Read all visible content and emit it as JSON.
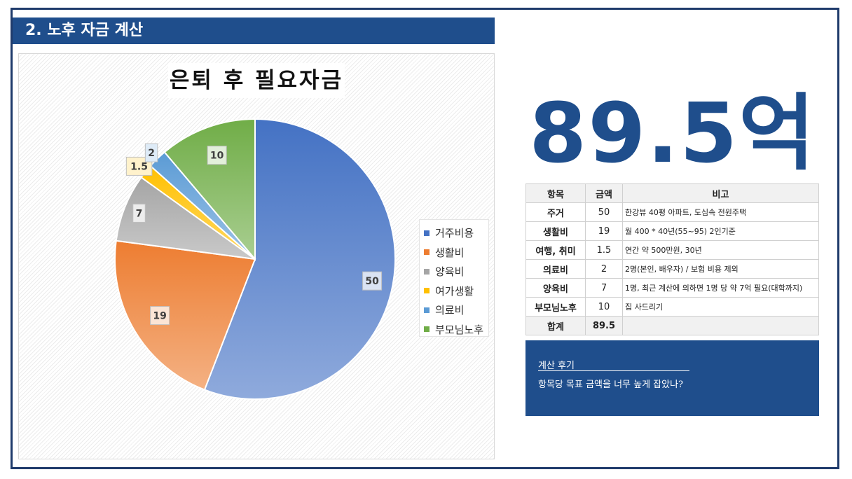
{
  "section": {
    "title": "2. 노후 자금 계산"
  },
  "chart_data": {
    "type": "pie",
    "title": "은퇴 후 필요자금",
    "categories": [
      "거주비용",
      "생활비",
      "양육비",
      "여가생활",
      "의료비",
      "부모님노후"
    ],
    "values": [
      50,
      19,
      7,
      1.5,
      2,
      10
    ],
    "data_labels": [
      "50",
      "19",
      "7",
      "1.5",
      "2",
      "10"
    ],
    "colors": [
      "#4472c4",
      "#ed7d31",
      "#a5a5a5",
      "#ffc000",
      "#5b9bd5",
      "#70ad47"
    ],
    "legend_position": "right"
  },
  "summary": {
    "total_display": "89.5억"
  },
  "table": {
    "headers": [
      "항목",
      "금액",
      "비고"
    ],
    "rows": [
      {
        "item": "주거",
        "amount": "50",
        "note": "한강뷰 40평 아파트, 도심속 전원주택"
      },
      {
        "item": "생활비",
        "amount": "19",
        "note": "월 400 * 40년(55~95) 2인기준"
      },
      {
        "item": "여행, 취미",
        "amount": "1.5",
        "note": "연간 약 500만원, 30년"
      },
      {
        "item": "의료비",
        "amount": "2",
        "note": "2명(본인, 배우자) / 보험 비용 제외"
      },
      {
        "item": "양육비",
        "amount": "7",
        "note": "1명, 최근 계산에 의하면 1명 당 약 7억 필요(대학까지)"
      },
      {
        "item": "부모님노후",
        "amount": "10",
        "note": "집 사드리기"
      }
    ],
    "total": {
      "item": "합계",
      "amount": "89.5",
      "note": ""
    }
  },
  "review": {
    "title": "계산 후기",
    "text": "항목당 목표 금액을 너무 높게 잡았나?"
  }
}
